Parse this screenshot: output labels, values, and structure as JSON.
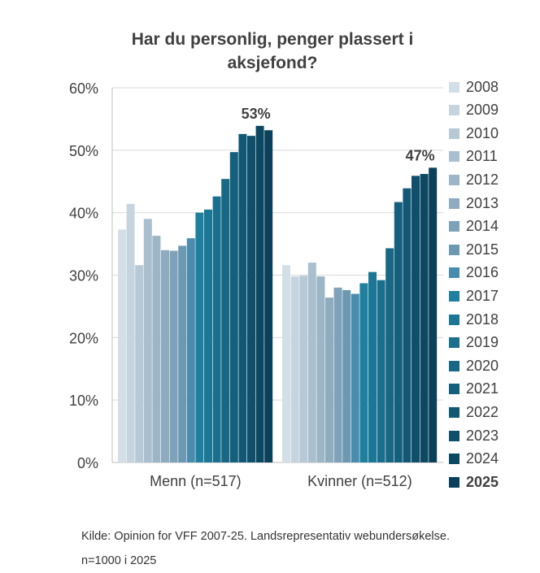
{
  "chart_data": {
    "type": "bar",
    "title": "Har du personlig, penger plassert i aksjefond?",
    "categories": [
      "Menn (n=517)",
      "Kvinner (n=512)"
    ],
    "ylim": [
      0,
      60
    ],
    "yticks": [
      "0%",
      "10%",
      "20%",
      "30%",
      "40%",
      "50%",
      "60%"
    ],
    "grid": true,
    "legend_position": "right",
    "series": [
      {
        "name": "2008",
        "color": "#d4dee6",
        "values": [
          37.3,
          31.6
        ]
      },
      {
        "name": "2009",
        "color": "#c6d4df",
        "values": [
          41.4,
          29.8
        ]
      },
      {
        "name": "2010",
        "color": "#b7c9d6",
        "values": [
          31.6,
          29.9
        ]
      },
      {
        "name": "2011",
        "color": "#a9bfcf",
        "values": [
          39.0,
          32.0
        ]
      },
      {
        "name": "2012",
        "color": "#9cb5c7",
        "values": [
          36.3,
          29.8
        ]
      },
      {
        "name": "2013",
        "color": "#8eabbf",
        "values": [
          34.0,
          26.4
        ]
      },
      {
        "name": "2014",
        "color": "#7ea2b9",
        "values": [
          33.9,
          28.0
        ]
      },
      {
        "name": "2015",
        "color": "#6d98b2",
        "values": [
          34.7,
          27.6
        ]
      },
      {
        "name": "2016",
        "color": "#4a8cae",
        "values": [
          35.9,
          27.0
        ]
      },
      {
        "name": "2017",
        "color": "#1f7f9f",
        "values": [
          40.0,
          28.7
        ]
      },
      {
        "name": "2018",
        "color": "#1c7796",
        "values": [
          40.5,
          30.5
        ]
      },
      {
        "name": "2019",
        "color": "#196f8d",
        "values": [
          42.6,
          29.2
        ]
      },
      {
        "name": "2020",
        "color": "#176785",
        "values": [
          45.4,
          34.3
        ]
      },
      {
        "name": "2021",
        "color": "#145f7c",
        "values": [
          49.7,
          41.7
        ]
      },
      {
        "name": "2022",
        "color": "#125774",
        "values": [
          52.6,
          43.9
        ]
      },
      {
        "name": "2023",
        "color": "#104f6b",
        "values": [
          52.3,
          45.9
        ]
      },
      {
        "name": "2024",
        "color": "#0d4862",
        "values": [
          53.9,
          46.2
        ]
      },
      {
        "name": "2025",
        "color": "#0a405a",
        "values": [
          53.2,
          47.2
        ]
      }
    ],
    "annotations": [
      {
        "text": "53%",
        "category": "Menn (n=517)"
      },
      {
        "text": "47%",
        "category": "Kvinner (n=512)"
      }
    ]
  },
  "source": {
    "line1": "Kilde: Opinion for VFF 2007-25. Landsrepresentativ webundersøkelse.",
    "line2": "n=1000 i 2025"
  }
}
